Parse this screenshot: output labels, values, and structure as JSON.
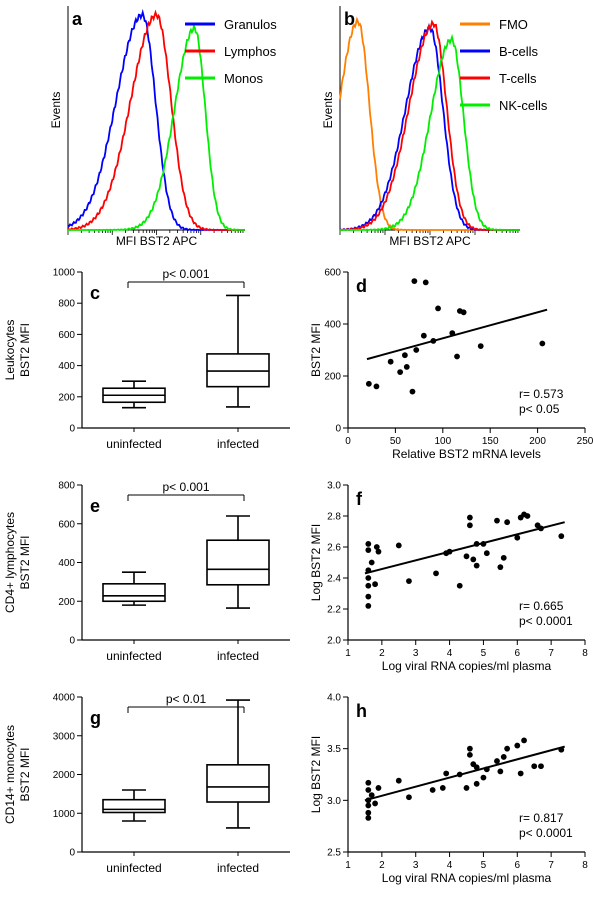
{
  "chart_data": [
    {
      "id": "a",
      "type": "line",
      "letter": "a",
      "xlabel": "MFI BST2 APC",
      "ylabel": "Events",
      "xlog": true,
      "legend": "top-right",
      "series": [
        {
          "name": "Granulos",
          "color": "#0000ff",
          "peak": 0.42,
          "width": 0.095,
          "height": 0.96,
          "skew": 0.55
        },
        {
          "name": "Lymphos",
          "color": "#ff0000",
          "peak": 0.5,
          "width": 0.1,
          "height": 0.96,
          "skew": 0.45
        },
        {
          "name": "Monos",
          "color": "#00ee00",
          "peak": 0.715,
          "width": 0.075,
          "height": 0.9,
          "skew": 0.5
        }
      ]
    },
    {
      "id": "b",
      "type": "line",
      "letter": "b",
      "xlabel": "MFI BST2 APC",
      "ylabel": "Events",
      "xlog": true,
      "legend": "top-right",
      "series": [
        {
          "name": "FMO",
          "color": "#ff7f00",
          "peak": 0.1,
          "width": 0.075,
          "height": 0.93,
          "skew": 0.4
        },
        {
          "name": "B-cells",
          "color": "#0000ff",
          "peak": 0.5,
          "width": 0.09,
          "height": 0.9,
          "skew": 0.5
        },
        {
          "name": "T-cells",
          "color": "#ff0000",
          "peak": 0.52,
          "width": 0.09,
          "height": 0.92,
          "skew": 0.5
        },
        {
          "name": "NK-cells",
          "color": "#00ee00",
          "peak": 0.62,
          "width": 0.08,
          "height": 0.85,
          "skew": 0.45
        }
      ]
    },
    {
      "id": "c",
      "type": "box",
      "letter": "c",
      "ylabel_lines": [
        "Leukocytes",
        "BST2 MFI"
      ],
      "categories": [
        "uninfected",
        "infected"
      ],
      "ylim": [
        0,
        1000
      ],
      "yticks": [
        0,
        200,
        400,
        600,
        800,
        1000
      ],
      "boxes": [
        {
          "min": 130,
          "q1": 165,
          "median": 210,
          "q3": 255,
          "max": 300
        },
        {
          "min": 135,
          "q1": 265,
          "median": 365,
          "q3": 475,
          "max": 850
        }
      ],
      "annotation": "p< 0.001"
    },
    {
      "id": "d",
      "type": "scatter",
      "letter": "d",
      "xlabel": "Relative BST2 mRNA levels",
      "ylabel": "BST2 MFI",
      "xlim": [
        0,
        250
      ],
      "ylim": [
        0,
        600
      ],
      "xticks": [
        0,
        50,
        100,
        150,
        200,
        250
      ],
      "yticks": [
        0,
        200,
        400,
        600
      ],
      "points": [
        [
          22,
          170
        ],
        [
          30,
          160
        ],
        [
          45,
          255
        ],
        [
          55,
          215
        ],
        [
          60,
          280
        ],
        [
          62,
          235
        ],
        [
          68,
          140
        ],
        [
          70,
          565
        ],
        [
          72,
          300
        ],
        [
          80,
          355
        ],
        [
          82,
          560
        ],
        [
          90,
          335
        ],
        [
          95,
          460
        ],
        [
          110,
          365
        ],
        [
          115,
          275
        ],
        [
          118,
          450
        ],
        [
          122,
          445
        ],
        [
          140,
          315
        ],
        [
          205,
          325
        ]
      ],
      "fit": [
        [
          20,
          265
        ],
        [
          210,
          455
        ]
      ],
      "stats": [
        "r= 0.573",
        "p< 0.05"
      ]
    },
    {
      "id": "e",
      "type": "box",
      "letter": "e",
      "ylabel_lines": [
        "CD4+ lymphocytes",
        "BST2 MFI"
      ],
      "categories": [
        "uninfected",
        "infected"
      ],
      "ylim": [
        0,
        800
      ],
      "yticks": [
        0,
        200,
        400,
        600,
        800
      ],
      "boxes": [
        {
          "min": 180,
          "q1": 200,
          "median": 228,
          "q3": 290,
          "max": 350
        },
        {
          "min": 165,
          "q1": 285,
          "median": 365,
          "q3": 515,
          "max": 640
        }
      ],
      "annotation": "p< 0.001"
    },
    {
      "id": "f",
      "type": "scatter",
      "letter": "f",
      "xlabel": "Log viral RNA copies/ml plasma",
      "ylabel": "Log BST2 MFI",
      "xlim": [
        1,
        8
      ],
      "ylim": [
        2.0,
        3.0
      ],
      "xticks": [
        1,
        2,
        3,
        4,
        5,
        6,
        7,
        8
      ],
      "yticks": [
        2.0,
        2.2,
        2.4,
        2.6,
        2.8,
        3.0
      ],
      "ytick_labels": [
        "2.0",
        "2.2",
        "2.4",
        "2.6",
        "2.8",
        "3.0"
      ],
      "points": [
        [
          1.6,
          2.62
        ],
        [
          1.6,
          2.58
        ],
        [
          1.6,
          2.45
        ],
        [
          1.6,
          2.4
        ],
        [
          1.6,
          2.35
        ],
        [
          1.6,
          2.28
        ],
        [
          1.6,
          2.22
        ],
        [
          1.7,
          2.5
        ],
        [
          1.8,
          2.36
        ],
        [
          1.85,
          2.6
        ],
        [
          1.9,
          2.57
        ],
        [
          2.5,
          2.61
        ],
        [
          2.8,
          2.38
        ],
        [
          3.6,
          2.43
        ],
        [
          3.9,
          2.56
        ],
        [
          4.0,
          2.57
        ],
        [
          4.3,
          2.35
        ],
        [
          4.5,
          2.54
        ],
        [
          4.6,
          2.79
        ],
        [
          4.6,
          2.74
        ],
        [
          4.7,
          2.52
        ],
        [
          4.8,
          2.62
        ],
        [
          4.8,
          2.48
        ],
        [
          5.0,
          2.62
        ],
        [
          5.1,
          2.56
        ],
        [
          5.4,
          2.77
        ],
        [
          5.5,
          2.47
        ],
        [
          5.6,
          2.53
        ],
        [
          5.7,
          2.76
        ],
        [
          6.0,
          2.66
        ],
        [
          6.1,
          2.79
        ],
        [
          6.2,
          2.81
        ],
        [
          6.3,
          2.8
        ],
        [
          6.6,
          2.74
        ],
        [
          6.7,
          2.72
        ],
        [
          7.3,
          2.67
        ]
      ],
      "fit": [
        [
          1.5,
          2.43
        ],
        [
          7.4,
          2.76
        ]
      ],
      "stats": [
        "r= 0.665",
        "p< 0.0001"
      ]
    },
    {
      "id": "g",
      "type": "box",
      "letter": "g",
      "ylabel_lines": [
        "CD14+ monocytes",
        "BST2 MFI"
      ],
      "categories": [
        "uninfected",
        "infected"
      ],
      "ylim": [
        0,
        4000
      ],
      "yticks": [
        0,
        1000,
        2000,
        3000,
        4000
      ],
      "boxes": [
        {
          "min": 800,
          "q1": 1020,
          "median": 1100,
          "q3": 1350,
          "max": 1600
        },
        {
          "min": 620,
          "q1": 1290,
          "median": 1680,
          "q3": 2250,
          "max": 3920
        }
      ],
      "annotation": "p< 0.01"
    },
    {
      "id": "h",
      "type": "scatter",
      "letter": "h",
      "xlabel": "Log viral RNA copies/ml plasma",
      "ylabel": "Log BST2 MFI",
      "xlim": [
        1,
        8
      ],
      "ylim": [
        2.5,
        4.0
      ],
      "xticks": [
        1,
        2,
        3,
        4,
        5,
        6,
        7,
        8
      ],
      "yticks": [
        2.5,
        3.0,
        3.5,
        4.0
      ],
      "ytick_labels": [
        "2.5",
        "3.0",
        "3.5",
        "4.0"
      ],
      "points": [
        [
          1.6,
          3.17
        ],
        [
          1.6,
          3.1
        ],
        [
          1.6,
          3.0
        ],
        [
          1.6,
          2.95
        ],
        [
          1.6,
          2.88
        ],
        [
          1.6,
          2.83
        ],
        [
          1.7,
          3.05
        ],
        [
          1.8,
          2.97
        ],
        [
          1.9,
          3.12
        ],
        [
          2.5,
          3.19
        ],
        [
          2.8,
          3.03
        ],
        [
          3.5,
          3.1
        ],
        [
          3.8,
          3.12
        ],
        [
          3.9,
          3.26
        ],
        [
          4.3,
          3.25
        ],
        [
          4.5,
          3.12
        ],
        [
          4.6,
          3.5
        ],
        [
          4.6,
          3.44
        ],
        [
          4.7,
          3.35
        ],
        [
          4.8,
          3.32
        ],
        [
          4.8,
          3.16
        ],
        [
          5.0,
          3.22
        ],
        [
          5.1,
          3.3
        ],
        [
          5.4,
          3.38
        ],
        [
          5.5,
          3.28
        ],
        [
          5.6,
          3.42
        ],
        [
          5.7,
          3.5
        ],
        [
          6.0,
          3.53
        ],
        [
          6.1,
          3.26
        ],
        [
          6.2,
          3.58
        ],
        [
          6.5,
          3.33
        ],
        [
          6.7,
          3.33
        ],
        [
          7.3,
          3.49
        ]
      ],
      "fit": [
        [
          1.5,
          3.0
        ],
        [
          7.4,
          3.52
        ]
      ],
      "stats": [
        "r= 0.817",
        "p< 0.0001"
      ]
    }
  ]
}
